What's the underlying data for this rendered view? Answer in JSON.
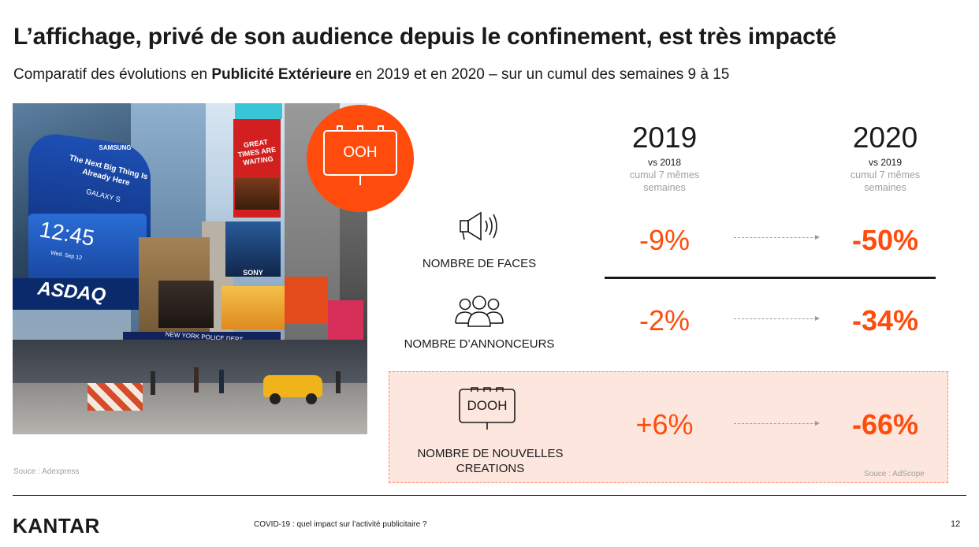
{
  "slide": {
    "title": "L’affichage, privé de son audience depuis le confinement, est très impacté",
    "subtitle_pre": "Comparatif des évolutions en ",
    "subtitle_bold": "Publicité Extérieure",
    "subtitle_post": " en 2019 et en 2020 – sur un cumul des semaines 9 à 15",
    "badge_label": "OOH",
    "photo_signs": {
      "samsung": "SAMSUNG",
      "next_big": "The Next Big Thing Is Already Here",
      "galaxy": "GALAXY S",
      "clock": "12:45",
      "clock_date": "Wed. Sep 12",
      "nasdaq": "ASDAQ",
      "great_times": "GREAT TIMES ARE WAITING",
      "sony": "SONY",
      "police": "NEW YORK POLICE DEPT"
    },
    "columns": [
      {
        "year": "2019",
        "vs": "vs 2018",
        "note": "cumul 7 mêmes semaines"
      },
      {
        "year": "2020",
        "vs": "vs 2019",
        "note": "cumul 7 mêmes semaines"
      }
    ],
    "metrics": [
      {
        "label": "NOMBRE DE FACES",
        "icon": "megaphone-icon",
        "v2019": "-9%",
        "v2020": "-50%"
      },
      {
        "label": "NOMBRE D’ANNONCEURS",
        "icon": "people-group-icon",
        "v2019": "-2%",
        "v2020": "-34%"
      },
      {
        "label_line1": "NOMBRE DE NOUVELLES",
        "label_line2": "CREATIONS",
        "icon": "dooh-billboard-icon",
        "icon_label": "DOOH",
        "v2019": "+6%",
        "v2020": "-66%"
      }
    ],
    "source_left": "Souce : Adexpress",
    "source_right": "Souce : AdScope",
    "footer": {
      "brand": "KANTAR",
      "caption": "COVID-19 : quel impact sur l’activité publicitaire ?",
      "page": "12"
    },
    "colors": {
      "accent": "#ff4c0c",
      "highlight_bg": "#fde6dd"
    }
  }
}
